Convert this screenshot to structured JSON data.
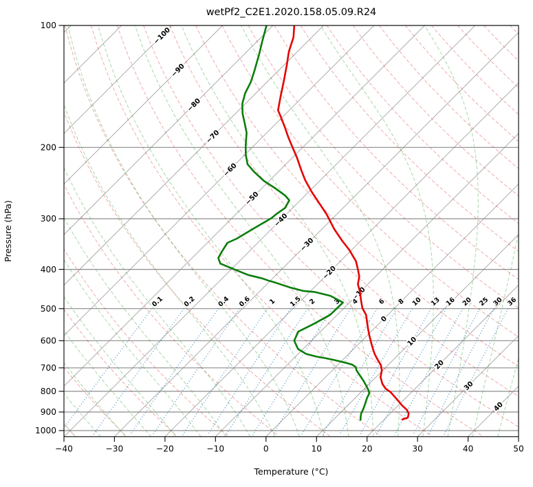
{
  "chart_data": {
    "type": "line",
    "variant": "skew-t-log-p",
    "title": "wetPf2_C2E1.2020.158.05.09.R24",
    "xlabel": "Temperature (°C)",
    "ylabel": "Pressure (hPa)",
    "xlim": [
      -40,
      50
    ],
    "ylim": [
      1035,
      100
    ],
    "skew_deg": 45,
    "grid": true,
    "x_ticks": [
      -40,
      -30,
      -20,
      -10,
      0,
      10,
      20,
      30,
      40,
      50
    ],
    "x_tick_labels": [
      "−40",
      "−30",
      "−20",
      "−10",
      "0",
      "10",
      "20",
      "30",
      "40",
      "50"
    ],
    "y_ticks": [
      100,
      200,
      300,
      400,
      500,
      600,
      700,
      800,
      900,
      1000
    ],
    "isotherms": {
      "start": -120,
      "end": 50,
      "step": 10
    },
    "isotherm_labels": [
      {
        "value": -100,
        "label": "−100",
        "p": 106
      },
      {
        "value": -90,
        "label": "−90",
        "p": 129
      },
      {
        "value": -80,
        "label": "−80",
        "p": 157
      },
      {
        "value": -70,
        "label": "−70",
        "p": 188
      },
      {
        "value": -60,
        "label": "−60",
        "p": 227
      },
      {
        "value": -50,
        "label": "−50",
        "p": 267
      },
      {
        "value": -40,
        "label": "−40",
        "p": 302
      },
      {
        "value": -30,
        "label": "−30",
        "p": 347
      },
      {
        "value": -20,
        "label": "−20",
        "p": 407
      },
      {
        "value": -10,
        "label": "−10",
        "p": 459
      },
      {
        "value": 0,
        "label": "0",
        "p": 530
      },
      {
        "value": 10,
        "label": "10",
        "p": 602
      },
      {
        "value": 20,
        "label": "20",
        "p": 687
      },
      {
        "value": 30,
        "label": "30",
        "p": 775
      },
      {
        "value": 40,
        "label": "40",
        "p": 872
      }
    ],
    "dry_adiabats": {
      "start": -40,
      "end": 190,
      "step": 10
    },
    "moist_adiabats": {
      "start": -40,
      "end": 45,
      "step": 5
    },
    "mixing_ratios": [
      0.1,
      0.2,
      0.4,
      0.6,
      1,
      1.5,
      2,
      3,
      4,
      6,
      8,
      10,
      13,
      16,
      20,
      25,
      30,
      36
    ],
    "mixing_ratio_labels": [
      "0.1",
      "0.2",
      "0.4",
      "0.6",
      "1",
      "1.5",
      "2",
      "3",
      "4",
      "6",
      "8",
      "10",
      "13",
      "16",
      "20",
      "25",
      "30",
      "36"
    ],
    "mixing_label_pressure": 480,
    "mixing_line_top_pressure": 500,
    "series": [
      {
        "name": "temperature",
        "color": "#e60000",
        "points_p_t": [
          [
            100,
            -75.8
          ],
          [
            107,
            -73.6
          ],
          [
            116,
            -71.7
          ],
          [
            125,
            -69.5
          ],
          [
            136,
            -67.1
          ],
          [
            150,
            -64.4
          ],
          [
            162,
            -62.2
          ],
          [
            168,
            -60.4
          ],
          [
            178,
            -57.6
          ],
          [
            189,
            -54.8
          ],
          [
            200,
            -52.0
          ],
          [
            212,
            -49.1
          ],
          [
            227,
            -45.9
          ],
          [
            241,
            -43.0
          ],
          [
            258,
            -39.3
          ],
          [
            274,
            -35.8
          ],
          [
            292,
            -32.1
          ],
          [
            318,
            -27.6
          ],
          [
            340,
            -23.7
          ],
          [
            358,
            -20.5
          ],
          [
            382,
            -16.9
          ],
          [
            402,
            -14.7
          ],
          [
            417,
            -13.2
          ],
          [
            435,
            -12.0
          ],
          [
            453,
            -10.2
          ],
          [
            479,
            -8.0
          ],
          [
            498,
            -6.4
          ],
          [
            518,
            -4.3
          ],
          [
            538,
            -2.8
          ],
          [
            560,
            -1.2
          ],
          [
            582,
            0.4
          ],
          [
            612,
            2.6
          ],
          [
            637,
            4.4
          ],
          [
            649,
            5.3
          ],
          [
            675,
            7.4
          ],
          [
            688,
            8.5
          ],
          [
            710,
            9.8
          ],
          [
            738,
            10.9
          ],
          [
            767,
            12.6
          ],
          [
            788,
            14.2
          ],
          [
            803,
            15.8
          ],
          [
            834,
            18.3
          ],
          [
            866,
            20.7
          ],
          [
            889,
            22.6
          ],
          [
            908,
            23.7
          ],
          [
            929,
            24.3
          ],
          [
            939,
            23.6
          ]
        ]
      },
      {
        "name": "dewpoint",
        "color": "#0a7d0a",
        "points_p_t": [
          [
            100,
            -81.3
          ],
          [
            109,
            -79.1
          ],
          [
            118,
            -77.0
          ],
          [
            130,
            -74.6
          ],
          [
            138,
            -73.2
          ],
          [
            147,
            -72.1
          ],
          [
            156,
            -70.6
          ],
          [
            165,
            -68.6
          ],
          [
            175,
            -66.1
          ],
          [
            184,
            -64.0
          ],
          [
            197,
            -61.8
          ],
          [
            208,
            -59.9
          ],
          [
            220,
            -57.6
          ],
          [
            230,
            -54.7
          ],
          [
            242,
            -51.0
          ],
          [
            253,
            -47.1
          ],
          [
            263,
            -43.9
          ],
          [
            270,
            -42.2
          ],
          [
            282,
            -41.5
          ],
          [
            292,
            -42.0
          ],
          [
            299,
            -42.2
          ],
          [
            318,
            -43.7
          ],
          [
            336,
            -45.0
          ],
          [
            344,
            -46.0
          ],
          [
            361,
            -45.4
          ],
          [
            375,
            -44.8
          ],
          [
            387,
            -43.3
          ],
          [
            397,
            -40.3
          ],
          [
            413,
            -35.5
          ],
          [
            421,
            -32.1
          ],
          [
            427,
            -30.2
          ],
          [
            432,
            -28.4
          ],
          [
            443,
            -24.9
          ],
          [
            452,
            -21.5
          ],
          [
            455,
            -18.9
          ],
          [
            465,
            -15.1
          ],
          [
            483,
            -11.3
          ],
          [
            518,
            -11.4
          ],
          [
            544,
            -12.8
          ],
          [
            570,
            -14.4
          ],
          [
            600,
            -13.4
          ],
          [
            629,
            -11.0
          ],
          [
            647,
            -8.4
          ],
          [
            657,
            -5.8
          ],
          [
            662,
            -3.9
          ],
          [
            670,
            -1.5
          ],
          [
            680,
            1.1
          ],
          [
            688,
            2.9
          ],
          [
            697,
            4.0
          ],
          [
            710,
            4.8
          ],
          [
            730,
            6.4
          ],
          [
            753,
            8.2
          ],
          [
            774,
            9.7
          ],
          [
            795,
            11.1
          ],
          [
            810,
            11.9
          ],
          [
            829,
            12.3
          ],
          [
            858,
            13.1
          ],
          [
            885,
            13.8
          ],
          [
            909,
            14.3
          ],
          [
            930,
            15.0
          ],
          [
            941,
            15.4
          ]
        ]
      }
    ],
    "colors": {
      "grid": "#808080",
      "isotherm": "#808080",
      "dry_adiabat": "#d62728",
      "moist_adiabat": "#2ca02c",
      "mixing_ratio": "#1f77b4",
      "label_negative": "#1f77b4",
      "label_zero": "#808080",
      "label_positive": "#d62728",
      "frame": "#000000"
    }
  }
}
